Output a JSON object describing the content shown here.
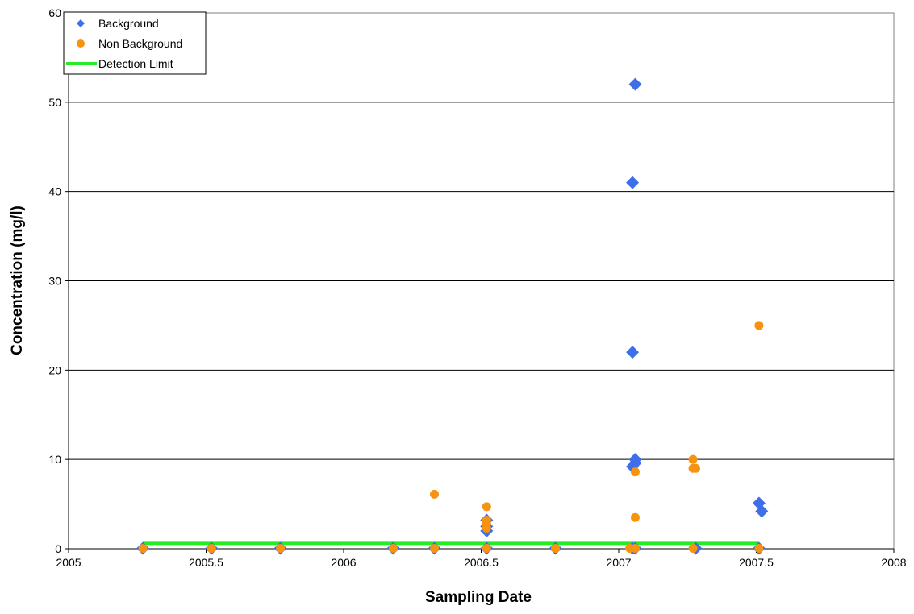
{
  "chart_data": {
    "type": "scatter",
    "title": "",
    "xlabel": "Sampling Date",
    "ylabel": "Concentration (mg/l)",
    "xlim": [
      2005,
      2008
    ],
    "ylim": [
      0,
      60
    ],
    "x_ticks": [
      2005,
      2005.5,
      2006,
      2006.5,
      2007,
      2007.5,
      2008
    ],
    "x_tick_labels": [
      "2005",
      "2005.5",
      "2006",
      "2006.5",
      "2007",
      "2007.5",
      "2008"
    ],
    "y_ticks": [
      0,
      10,
      20,
      30,
      40,
      50,
      60
    ],
    "y_tick_labels": [
      "0",
      "10",
      "20",
      "30",
      "40",
      "50",
      "60"
    ],
    "grid": "horizontal",
    "legend_position": "top-left",
    "series": [
      {
        "name": "Background",
        "marker": "diamond",
        "color": "#3F6FE8",
        "points": [
          [
            2005.27,
            0.05
          ],
          [
            2005.52,
            0.05
          ],
          [
            2005.77,
            0.05
          ],
          [
            2006.18,
            0.05
          ],
          [
            2006.33,
            0.05
          ],
          [
            2006.52,
            3.2
          ],
          [
            2006.52,
            2.5
          ],
          [
            2006.52,
            2.0
          ],
          [
            2006.52,
            0.05
          ],
          [
            2006.77,
            0.05
          ],
          [
            2007.05,
            41
          ],
          [
            2007.06,
            52
          ],
          [
            2007.05,
            22
          ],
          [
            2007.06,
            10
          ],
          [
            2007.05,
            9.2
          ],
          [
            2007.06,
            9.6
          ],
          [
            2007.05,
            0.05
          ],
          [
            2007.06,
            0.05
          ],
          [
            2007.28,
            0.05
          ],
          [
            2007.51,
            5.1
          ],
          [
            2007.52,
            4.2
          ],
          [
            2007.51,
            0.05
          ]
        ]
      },
      {
        "name": "Non Background",
        "marker": "circle",
        "color": "#F7930E",
        "points": [
          [
            2005.27,
            0.05
          ],
          [
            2005.52,
            0.05
          ],
          [
            2005.77,
            0.05
          ],
          [
            2006.18,
            0.05
          ],
          [
            2006.33,
            6.1
          ],
          [
            2006.33,
            0.05
          ],
          [
            2006.52,
            4.7
          ],
          [
            2006.52,
            3.2
          ],
          [
            2006.52,
            2.8
          ],
          [
            2006.52,
            2.3
          ],
          [
            2006.52,
            0.05
          ],
          [
            2006.77,
            0.05
          ],
          [
            2007.04,
            0.05
          ],
          [
            2007.06,
            8.6
          ],
          [
            2007.06,
            3.5
          ],
          [
            2007.06,
            0.05
          ],
          [
            2007.27,
            10
          ],
          [
            2007.27,
            9
          ],
          [
            2007.28,
            9
          ],
          [
            2007.27,
            0.05
          ],
          [
            2007.51,
            25
          ],
          [
            2007.51,
            0.05
          ]
        ]
      },
      {
        "name": "Detection Limit",
        "marker": "line",
        "color": "#22EE22",
        "points": [
          [
            2005.27,
            0.6
          ],
          [
            2007.51,
            0.6
          ]
        ]
      }
    ]
  }
}
